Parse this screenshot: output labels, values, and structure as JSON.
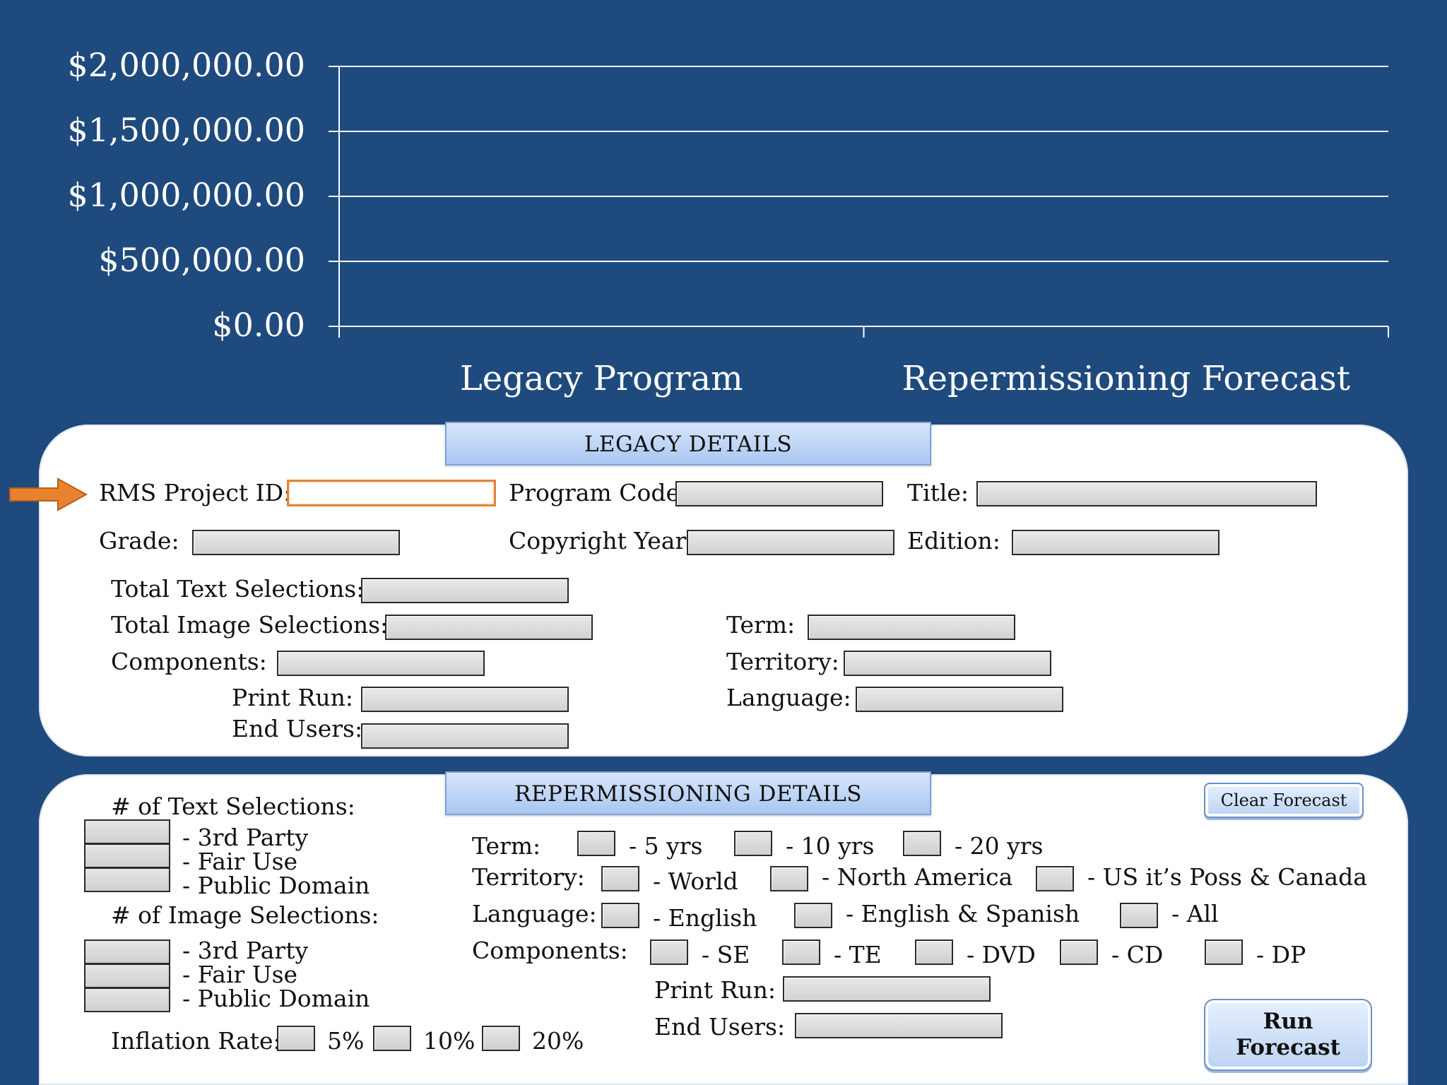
{
  "chart_data": {
    "type": "bar",
    "categories": [
      "Legacy Program",
      "Repermissioning Forecast"
    ],
    "series": [
      {
        "values": [
          0,
          0
        ]
      }
    ],
    "ylim": [
      0,
      2000000
    ],
    "yticks": [
      "$0.00",
      "$500,000.00",
      "$1,000,000.00",
      "$1,500,000.00",
      "$2,000,000.00"
    ],
    "title": "",
    "xlabel": "",
    "ylabel": "",
    "grid": true
  },
  "legacy": {
    "header": "LEGACY DETAILS",
    "labels": {
      "rms_project_id": "RMS Project ID:",
      "program_code": "Program Code:",
      "title": "Title:",
      "grade": "Grade:",
      "copyright_year": "Copyright Year:",
      "edition": "Edition:",
      "total_text_selections": "Total Text Selections:",
      "total_image_selections": "Total Image Selections:",
      "components": "Components:",
      "print_run": "Print Run:",
      "end_users": "End Users:",
      "term": "Term:",
      "territory": "Territory:",
      "language": "Language:"
    }
  },
  "reperm": {
    "header": "REPERMISSIONING DETAILS",
    "clear_button": "Clear Forecast",
    "run_button_line1": "Run",
    "run_button_line2": "Forecast",
    "text_selections_label": "# of Text Selections:",
    "image_selections_label": "# of Image Selections:",
    "sel_3rd_party": "- 3rd Party",
    "sel_fair_use": "- Fair Use",
    "sel_public_domain": "- Public Domain",
    "inflation_label": "Inflation Rate:",
    "inflation_options": [
      "5%",
      "10%",
      "20%"
    ],
    "term_label": "Term:",
    "term_options": [
      "- 5 yrs",
      "- 10 yrs",
      "- 20 yrs"
    ],
    "territory_label": "Territory:",
    "territory_options": [
      "- World",
      "- North America",
      "- US it’s Poss & Canada"
    ],
    "language_label": "Language:",
    "language_options": [
      "- English",
      "- English & Spanish",
      "- All"
    ],
    "components_label": "Components:",
    "components_options": [
      "- SE",
      "- TE",
      "- DVD",
      "- CD",
      "- DP"
    ],
    "print_run_label": "Print Run:",
    "end_users_label": "End Users:"
  },
  "colors": {
    "background": "#1f4a7e",
    "panel": "#ffffff",
    "header_tab": "#b9d2f6",
    "active_field_border": "#e0853a",
    "arrow": "#e8822e"
  }
}
